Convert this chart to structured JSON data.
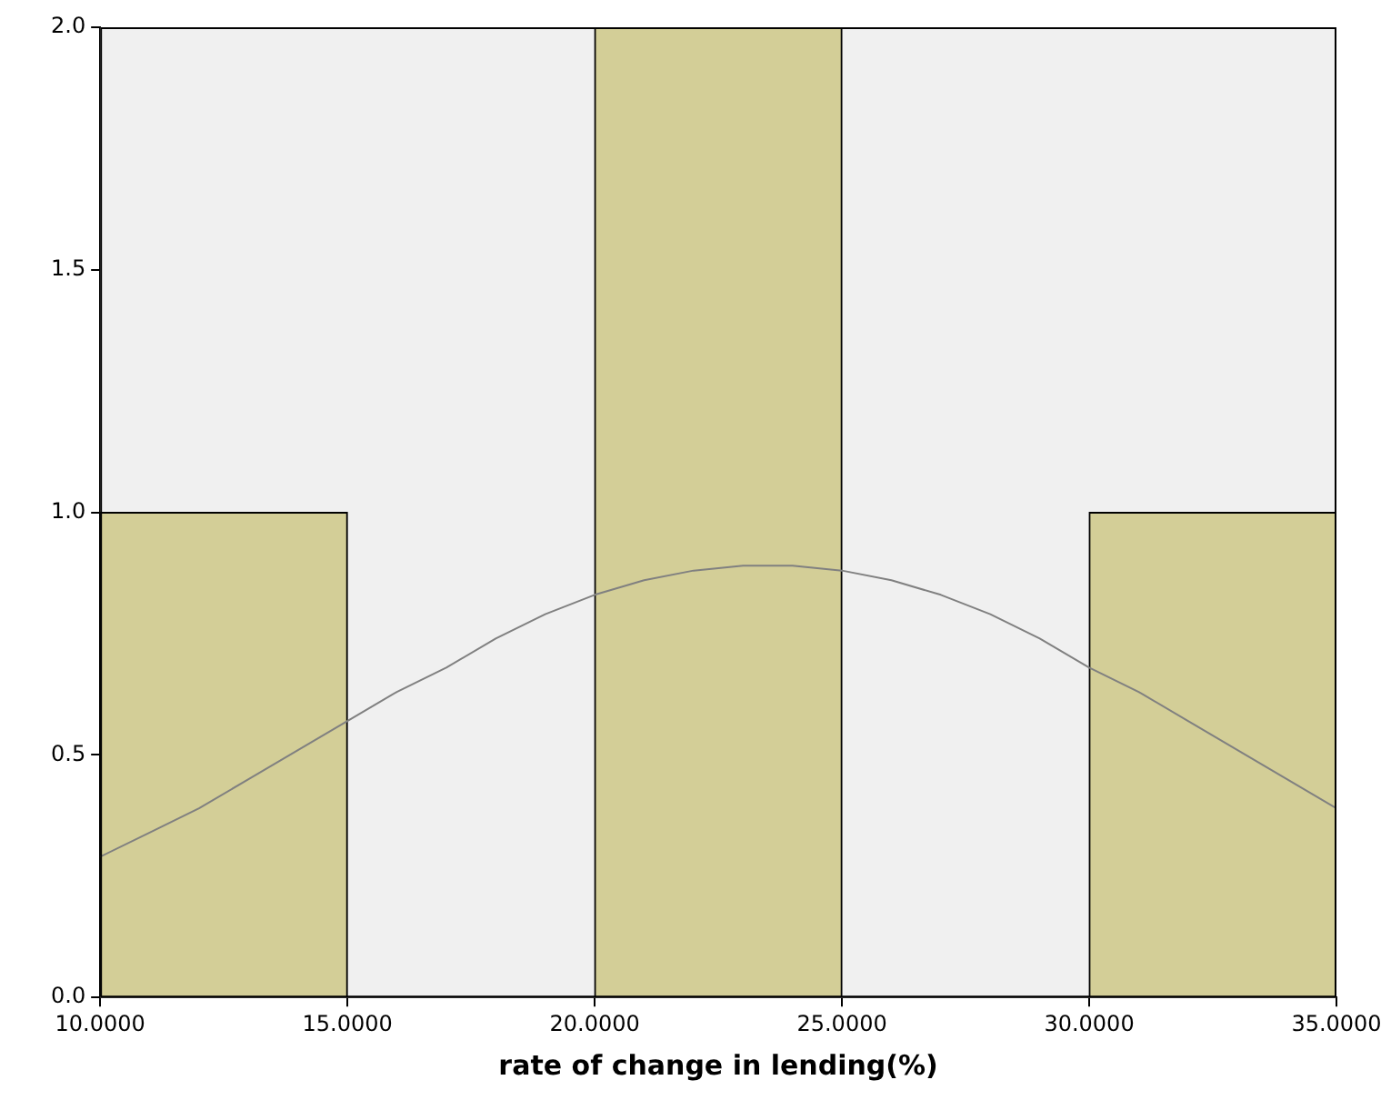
{
  "chart_data": {
    "type": "histogram",
    "xlabel": "rate of change in lending(%)",
    "bins": [
      10,
      15,
      20,
      25,
      30,
      35
    ],
    "values": [
      1,
      0,
      2,
      0,
      1
    ],
    "color": "#d3ce97",
    "series": [
      {
        "type": "line",
        "color": "#808080",
        "x": [
          10,
          11,
          12,
          13,
          14,
          15,
          16,
          17,
          18,
          19,
          20,
          21,
          22,
          23,
          23.5,
          24,
          25,
          26,
          27,
          28,
          29,
          30,
          31,
          32,
          33,
          34,
          35
        ],
        "values": [
          0.29,
          0.34,
          0.39,
          0.45,
          0.51,
          0.57,
          0.63,
          0.68,
          0.74,
          0.79,
          0.83,
          0.86,
          0.88,
          0.89,
          0.89,
          0.89,
          0.88,
          0.86,
          0.83,
          0.79,
          0.74,
          0.68,
          0.63,
          0.57,
          0.51,
          0.45,
          0.39
        ]
      }
    ],
    "xlim": [
      10,
      35
    ],
    "xticks": [
      {
        "value": 10,
        "label": "10.0000"
      },
      {
        "value": 15,
        "label": "15.0000"
      },
      {
        "value": 20,
        "label": "20.0000"
      },
      {
        "value": 25,
        "label": "25.0000"
      },
      {
        "value": 30,
        "label": "30.0000"
      },
      {
        "value": 35,
        "label": "35.0000"
      }
    ],
    "ylim": [
      0,
      2
    ],
    "yticks": [
      {
        "value": 0,
        "label": "0.0"
      },
      {
        "value": 0.5,
        "label": "0.5"
      },
      {
        "value": 1,
        "label": "1.0"
      },
      {
        "value": 1.5,
        "label": "1.5"
      },
      {
        "value": 2,
        "label": "2.0"
      }
    ],
    "grid": false,
    "legend": false,
    "marker": "none"
  }
}
